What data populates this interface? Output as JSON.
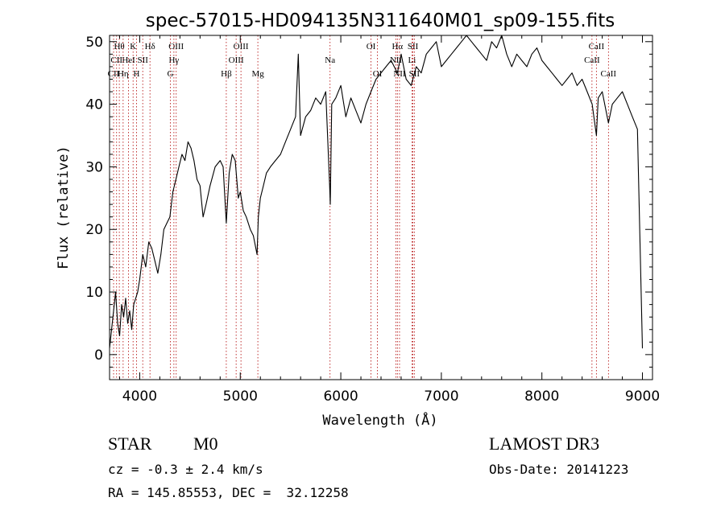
{
  "chart_data": {
    "type": "line",
    "title": "spec-57015-HD094135N311640M01_sp09-155.fits",
    "xlabel": "Wavelength (Å)",
    "ylabel": "Flux (relative)",
    "xlim": [
      3700,
      9100
    ],
    "ylim": [
      -4,
      51
    ],
    "x_ticks": [
      4000,
      5000,
      6000,
      7000,
      8000,
      9000
    ],
    "y_ticks": [
      0,
      10,
      20,
      30,
      40,
      50
    ],
    "grid": false,
    "series": [
      {
        "x": [
          3700,
          3720,
          3740,
          3760,
          3780,
          3800,
          3820,
          3840,
          3860,
          3880,
          3900,
          3920,
          3940,
          3960,
          3980,
          4000,
          4030,
          4060,
          4090,
          4120,
          4150,
          4180,
          4210,
          4240,
          4270,
          4300,
          4330,
          4360,
          4390,
          4420,
          4450,
          4480,
          4510,
          4540,
          4570,
          4600,
          4630,
          4660,
          4700,
          4750,
          4800,
          4830,
          4861,
          4890,
          4920,
          4950,
          4980,
          5000,
          5030,
          5060,
          5100,
          5130,
          5167,
          5180,
          5200,
          5230,
          5260,
          5300,
          5350,
          5400,
          5450,
          5500,
          5550,
          5577,
          5600,
          5650,
          5700,
          5750,
          5800,
          5850,
          5889,
          5895,
          5910,
          5950,
          6000,
          6050,
          6100,
          6150,
          6200,
          6250,
          6300,
          6350,
          6400,
          6450,
          6500,
          6563,
          6600,
          6650,
          6700,
          6750,
          6800,
          6850,
          6900,
          6950,
          7000,
          7050,
          7100,
          7150,
          7200,
          7250,
          7300,
          7350,
          7400,
          7450,
          7500,
          7550,
          7600,
          7650,
          7700,
          7750,
          7800,
          7850,
          7900,
          7950,
          8000,
          8050,
          8100,
          8150,
          8200,
          8250,
          8300,
          8350,
          8400,
          8450,
          8500,
          8542,
          8560,
          8600,
          8662,
          8700,
          8750,
          8800,
          8850,
          8900,
          8950,
          9000
        ],
        "y": [
          1,
          4,
          7,
          10,
          5,
          3,
          8,
          6,
          9,
          5,
          7,
          4,
          8,
          9,
          10,
          12,
          16,
          14,
          18,
          17,
          15,
          13,
          16,
          20,
          21,
          22,
          26,
          28,
          30,
          32,
          31,
          34,
          33,
          31,
          28,
          27,
          22,
          24,
          27,
          30,
          31,
          30,
          21,
          29,
          32,
          31,
          25,
          26,
          23,
          22,
          20,
          19,
          16,
          22,
          25,
          27,
          29,
          30,
          31,
          32,
          34,
          36,
          38,
          48,
          35,
          38,
          39,
          41,
          40,
          42,
          27,
          24,
          40,
          41,
          43,
          38,
          41,
          39,
          37,
          40,
          42,
          44,
          45,
          46,
          47,
          45,
          48,
          44,
          43,
          46,
          45,
          48,
          49,
          50,
          46,
          47,
          48,
          49,
          50,
          51,
          50,
          49,
          48,
          47,
          50,
          49,
          51,
          48,
          46,
          48,
          47,
          46,
          48,
          49,
          47,
          46,
          45,
          44,
          43,
          44,
          45,
          43,
          44,
          42,
          40,
          35,
          41,
          42,
          37,
          40,
          41,
          42,
          40,
          38,
          36,
          1
        ]
      }
    ],
    "spectral_lines": [
      {
        "label": "Hθ",
        "x": 3797,
        "row": 0
      },
      {
        "label": "CII",
        "x": 3770,
        "row": 1
      },
      {
        "label": "CII",
        "x": 3740,
        "row": 2
      },
      {
        "label": "K",
        "x": 3934,
        "row": 0
      },
      {
        "label": "HeI",
        "x": 3889,
        "row": 1
      },
      {
        "label": "Hη",
        "x": 3835,
        "row": 2
      },
      {
        "label": "Hδ",
        "x": 4102,
        "row": 0
      },
      {
        "label": "SII",
        "x": 4030,
        "row": 1
      },
      {
        "label": "H",
        "x": 3968,
        "row": 2
      },
      {
        "label": "OIII",
        "x": 4363,
        "row": 0
      },
      {
        "label": "Hγ",
        "x": 4340,
        "row": 1
      },
      {
        "label": "G",
        "x": 4305,
        "row": 2
      },
      {
        "label": "Hβ",
        "x": 4861,
        "row": 2
      },
      {
        "label": "OIII",
        "x": 5007,
        "row": 0
      },
      {
        "label": "OIII",
        "x": 4959,
        "row": 1
      },
      {
        "label": "Mg",
        "x": 5175,
        "row": 2
      },
      {
        "label": "Na",
        "x": 5893,
        "row": 1
      },
      {
        "label": "OI",
        "x": 6300,
        "row": 0
      },
      {
        "label": "OI",
        "x": 6364,
        "row": 2
      },
      {
        "label": "Hα",
        "x": 6563,
        "row": 0
      },
      {
        "label": "SII",
        "x": 6717,
        "row": 0
      },
      {
        "label": "NII",
        "x": 6548,
        "row": 1
      },
      {
        "label": "Li",
        "x": 6708,
        "row": 1
      },
      {
        "label": "NII",
        "x": 6584,
        "row": 2
      },
      {
        "label": "SII",
        "x": 6731,
        "row": 2
      },
      {
        "label": "CaII",
        "x": 8542,
        "row": 0
      },
      {
        "label": "CaII",
        "x": 8498,
        "row": 1
      },
      {
        "label": "CaII",
        "x": 8662,
        "row": 2
      }
    ]
  },
  "footer": {
    "obj_class": "STAR",
    "subclass": "M0",
    "cz": "cz = -0.3 ± 2.4 km/s",
    "coords": "RA = 145.85553, DEC =  32.12258",
    "survey": "LAMOST DR3",
    "obs_date": "Obs-Date: 20141223"
  }
}
